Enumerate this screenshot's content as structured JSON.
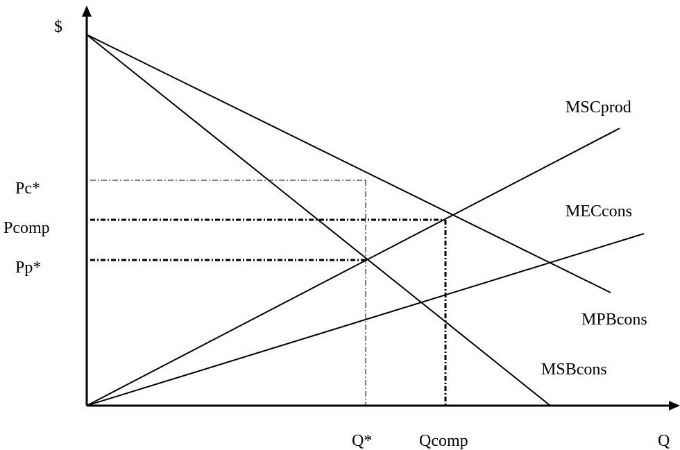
{
  "axes": {
    "y_label": "$",
    "x_label": "Q"
  },
  "price_labels": {
    "pc_star": "Pc*",
    "pcomp": "Pcomp",
    "pp_star": "Pp*"
  },
  "quantity_labels": {
    "q_star": "Q*",
    "qcomp": "Qcomp"
  },
  "curves": {
    "msc_prod": "MSCprod",
    "mec_cons": "MECcons",
    "mpb_cons": "MPBcons",
    "msb_cons": "MSBcons"
  }
}
